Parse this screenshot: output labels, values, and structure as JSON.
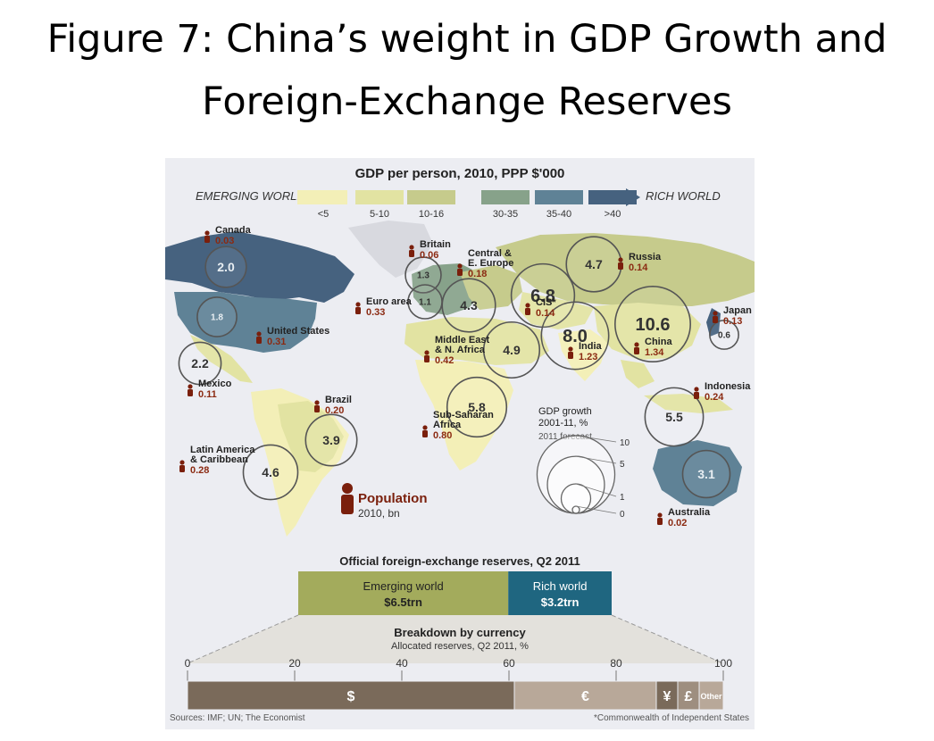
{
  "slide": {
    "title_line1": "Figure 7: China’s weight in GDP Growth and",
    "title_line2": "Foreign-Exchange Reserves"
  },
  "map": {
    "title": "GDP per person, 2010, PPP $'000",
    "scale_left": "EMERGING WORLD",
    "scale_right": "RICH WORLD",
    "legend": [
      {
        "label": "<5",
        "color": "#f3efb7"
      },
      {
        "label": "5-10",
        "color": "#e2e3a2"
      },
      {
        "label": "10-16",
        "color": "#c6cb8c"
      },
      {
        "label": "30-35",
        "color": "#87a28a"
      },
      {
        "label": "35-40",
        "color": "#5f8296"
      },
      {
        "label": ">40",
        "color": "#46627f"
      }
    ],
    "regions": [
      {
        "id": "canada",
        "name": "Canada",
        "population": "0.03",
        "growth": "2.0"
      },
      {
        "id": "united-states",
        "name": "United States",
        "population": "0.31",
        "growth": "1.8"
      },
      {
        "id": "mexico",
        "name": "Mexico",
        "population": "0.11",
        "growth": "2.2"
      },
      {
        "id": "britain",
        "name": "Britain",
        "population": "0.06",
        "growth": "1.3"
      },
      {
        "id": "euro-area",
        "name": "Euro area",
        "population": "0.33",
        "growth": "1.1"
      },
      {
        "id": "central-europe",
        "name_line1": "Central &",
        "name_line2": "E. Europe",
        "population": "0.18",
        "growth": "4.3"
      },
      {
        "id": "russia",
        "name": "Russia",
        "population": "0.14",
        "growth": "4.7"
      },
      {
        "id": "cis",
        "name": "CIS*",
        "population": "0.14",
        "growth": "6.8"
      },
      {
        "id": "middle-east",
        "name_line1": "Middle East",
        "name_line2": "& N. Africa",
        "population": "0.42",
        "growth": "4.9"
      },
      {
        "id": "india",
        "name": "India",
        "population": "1.23",
        "growth": "8.0"
      },
      {
        "id": "china",
        "name": "China",
        "population": "1.34",
        "growth": "10.6"
      },
      {
        "id": "japan",
        "name": "Japan",
        "population": "0.13",
        "growth": "0.6"
      },
      {
        "id": "indonesia",
        "name": "Indonesia",
        "population": "0.24",
        "growth": "5.5"
      },
      {
        "id": "australia",
        "name": "Australia",
        "population": "0.02",
        "growth": "3.1"
      },
      {
        "id": "brazil",
        "name": "Brazil",
        "population": "0.20",
        "growth": "3.9"
      },
      {
        "id": "latin-america",
        "name_line1": "Latin America",
        "name_line2": "& Caribbean",
        "population": "0.28",
        "growth": "4.6"
      },
      {
        "id": "sub-saharan-africa",
        "name_line1": "Sub-Saharan",
        "name_line2": "Africa",
        "population": "0.80",
        "growth": "5.8"
      }
    ],
    "growth_key": {
      "title_line1": "GDP growth",
      "title_line2": "2001-11, %",
      "subtitle": "2011 forecast",
      "ticks": [
        "10",
        "5",
        "1",
        "0"
      ]
    },
    "population_key": {
      "title": "Population",
      "subtitle": "2010, bn"
    }
  },
  "reserves": {
    "title": "Official foreign-exchange reserves, Q2 2011",
    "emerging_label": "Emerging world",
    "emerging_value": "$6.5trn",
    "emerging_trn": 6.5,
    "rich_label": "Rich world",
    "rich_value": "$3.2trn",
    "rich_trn": 3.2,
    "emerging_color": "#a3ab5c",
    "rich_color": "#1f6680"
  },
  "chart_data": {
    "type": "bar",
    "title": "Breakdown by currency",
    "subtitle": "Allocated reserves, Q2 2011, %",
    "xlim": [
      0,
      100
    ],
    "ticks": [
      "0",
      "20",
      "40",
      "60",
      "80",
      "100"
    ],
    "tick_values": [
      0,
      20,
      40,
      60,
      80,
      100
    ],
    "segments": [
      {
        "name": "$",
        "value": 61,
        "color": "#7a6a5a"
      },
      {
        "name": "€",
        "value": 26.5,
        "color": "#b8a899"
      },
      {
        "name": "¥",
        "value": 4,
        "color": "#7a6a5a"
      },
      {
        "name": "£",
        "value": 4,
        "color": "#9e8e7f"
      },
      {
        "name": "Other",
        "value": 4.5,
        "color": "#b8a899"
      }
    ]
  },
  "footer": {
    "sources": "Sources: IMF; UN; The Economist",
    "footnote": "*Commonwealth of Independent States"
  }
}
